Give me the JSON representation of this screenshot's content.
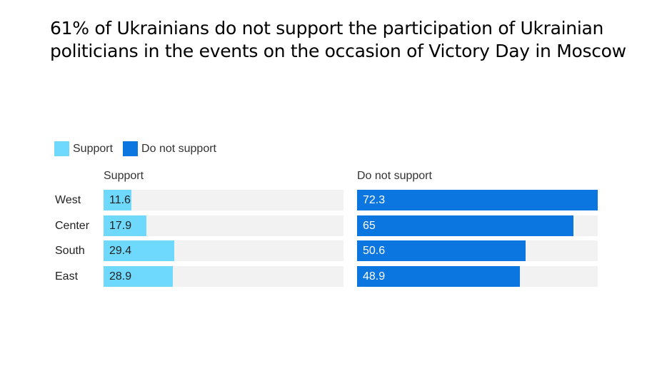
{
  "title": "61% of Ukrainians do not support the participation of Ukrainian politicians in the events on the occasion of Victory Day in Moscow",
  "legend": [
    {
      "label": "Support",
      "color": "#6ed9fd"
    },
    {
      "label": "Do not support",
      "color": "#0b76e0"
    }
  ],
  "chart_data": {
    "type": "bar",
    "orientation": "horizontal",
    "title": "61% of Ukrainians do not support the participation of Ukrainian politicians in the events on the occasion of Victory Day in Moscow",
    "categories": [
      "West",
      "Center",
      "South",
      "East"
    ],
    "series": [
      {
        "name": "Support",
        "values": [
          11.6,
          17.9,
          29.4,
          28.9
        ],
        "color": "#6ed9fd",
        "text_color": "#222222",
        "xlim": [
          0,
          100
        ]
      },
      {
        "name": "Do not support",
        "values": [
          72.3,
          65,
          50.6,
          48.9
        ],
        "color": "#0b76e0",
        "text_color": "#ffffff",
        "xlim": [
          0,
          72.3
        ]
      }
    ],
    "legend_position": "top-left",
    "grid": false
  }
}
